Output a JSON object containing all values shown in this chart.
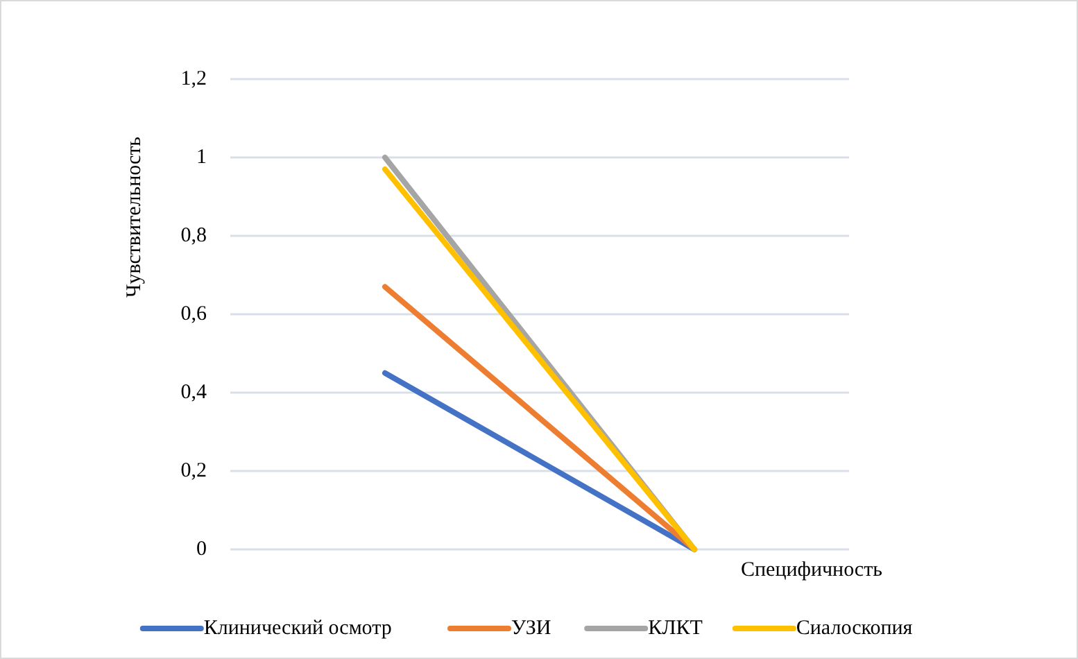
{
  "chart_data": {
    "type": "line",
    "xlabel": "Специфичность",
    "ylabel": "Чувствительность",
    "categories": [
      null,
      null
    ],
    "series": [
      {
        "name": "Клинический осмотр",
        "color": "#4472c4",
        "values": [
          0.45,
          0
        ]
      },
      {
        "name": "УЗИ",
        "color": "#ed7d31",
        "values": [
          0.67,
          0
        ]
      },
      {
        "name": "КЛКТ",
        "color": "#a5a5a5",
        "values": [
          1,
          0
        ]
      },
      {
        "name": "Сиалоскопия",
        "color": "#ffc000",
        "values": [
          0.97,
          0
        ]
      }
    ],
    "ylim": [
      0,
      1.2
    ],
    "yticks": [
      0,
      {
        "value": 0.2,
        "label": "0,2"
      },
      {
        "value": 0.4,
        "label": "0,4"
      },
      {
        "value": 0.6,
        "label": "0,6"
      },
      {
        "value": 0.8,
        "label": "0,8"
      },
      1,
      {
        "value": 1.2,
        "label": "1,2"
      }
    ],
    "grid": "y",
    "legend": "bottom",
    "marker": "none",
    "line_style": "solid"
  }
}
